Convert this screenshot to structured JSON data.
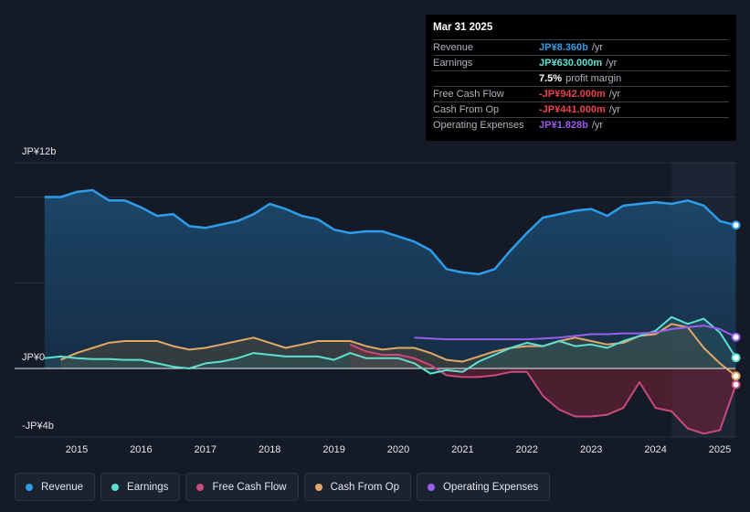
{
  "tooltip": {
    "date": "Mar 31 2025",
    "rows": [
      {
        "label": "Revenue",
        "value": "JP¥8.360b",
        "unit": "/yr",
        "color": "#2d9cea"
      },
      {
        "label": "Earnings",
        "value": "JP¥630.000m",
        "unit": "/yr",
        "color": "#5ce0d2"
      },
      {
        "label": "",
        "value": "7.5%",
        "unit": "profit margin",
        "color": "#ffffff"
      },
      {
        "label": "Free Cash Flow",
        "value": "-JP¥942.000m",
        "unit": "/yr",
        "color": "#e8434e"
      },
      {
        "label": "Cash From Op",
        "value": "-JP¥441.000m",
        "unit": "/yr",
        "color": "#e8434e"
      },
      {
        "label": "Operating Expenses",
        "value": "JP¥1.828b",
        "unit": "/yr",
        "color": "#9b5cf0"
      }
    ]
  },
  "chart_data": {
    "type": "area",
    "y_unit": "JP¥ billions",
    "ylim": [
      -4,
      12
    ],
    "y_tick_labels": {
      "top": "JP¥12b",
      "zero": "JP¥0",
      "bottom": "-JP¥4b"
    },
    "x_tick_labels": [
      "2015",
      "2016",
      "2017",
      "2018",
      "2019",
      "2020",
      "2021",
      "2022",
      "2023",
      "2024",
      "2025"
    ],
    "x_range": [
      2014.5,
      2025.25
    ],
    "highlight_start": 2024.25,
    "series": [
      {
        "name": "Revenue",
        "color": "#2d9cea",
        "x": [
          2014.5,
          2014.75,
          2015.0,
          2015.25,
          2015.5,
          2015.75,
          2016.0,
          2016.25,
          2016.5,
          2016.75,
          2017.0,
          2017.25,
          2017.5,
          2017.75,
          2018.0,
          2018.25,
          2018.5,
          2018.75,
          2019.0,
          2019.25,
          2019.5,
          2019.75,
          2020.0,
          2020.25,
          2020.5,
          2020.75,
          2021.0,
          2021.25,
          2021.5,
          2021.75,
          2022.0,
          2022.25,
          2022.5,
          2022.75,
          2023.0,
          2023.25,
          2023.5,
          2023.75,
          2024.0,
          2024.25,
          2024.5,
          2024.75,
          2025.0,
          2025.25
        ],
        "values": [
          10.0,
          10.0,
          10.3,
          10.4,
          9.8,
          9.8,
          9.4,
          8.9,
          9.0,
          8.3,
          8.2,
          8.4,
          8.6,
          9.0,
          9.6,
          9.3,
          8.9,
          8.7,
          8.1,
          7.9,
          8.0,
          8.0,
          7.7,
          7.4,
          6.9,
          5.8,
          5.6,
          5.5,
          5.8,
          6.9,
          7.9,
          8.8,
          9.0,
          9.2,
          9.3,
          8.9,
          9.5,
          9.6,
          9.7,
          9.6,
          9.8,
          9.5,
          8.6,
          8.36
        ]
      },
      {
        "name": "Earnings",
        "color": "#5ce0d2",
        "x": [
          2014.5,
          2014.75,
          2015.0,
          2015.25,
          2015.5,
          2015.75,
          2016.0,
          2016.25,
          2016.5,
          2016.75,
          2017.0,
          2017.25,
          2017.5,
          2017.75,
          2018.0,
          2018.25,
          2018.5,
          2018.75,
          2019.0,
          2019.25,
          2019.5,
          2019.75,
          2020.0,
          2020.25,
          2020.5,
          2020.75,
          2021.0,
          2021.25,
          2021.5,
          2021.75,
          2022.0,
          2022.25,
          2022.5,
          2022.75,
          2023.0,
          2023.25,
          2023.5,
          2023.75,
          2024.0,
          2024.25,
          2024.5,
          2024.75,
          2025.0,
          2025.25
        ],
        "values": [
          0.6,
          0.7,
          0.6,
          0.55,
          0.55,
          0.5,
          0.5,
          0.3,
          0.1,
          0.0,
          0.3,
          0.4,
          0.6,
          0.9,
          0.8,
          0.7,
          0.7,
          0.7,
          0.5,
          0.9,
          0.6,
          0.6,
          0.6,
          0.3,
          -0.3,
          -0.1,
          -0.2,
          0.4,
          0.8,
          1.2,
          1.5,
          1.3,
          1.6,
          1.3,
          1.4,
          1.2,
          1.6,
          1.9,
          2.2,
          3.0,
          2.6,
          2.9,
          2.1,
          0.63
        ]
      },
      {
        "name": "Free Cash Flow",
        "color": "#c94a7c",
        "x": [
          2019.25,
          2019.5,
          2019.75,
          2020.0,
          2020.25,
          2020.5,
          2020.75,
          2021.0,
          2021.25,
          2021.5,
          2021.75,
          2022.0,
          2022.25,
          2022.5,
          2022.75,
          2023.0,
          2023.25,
          2023.5,
          2023.75,
          2024.0,
          2024.25,
          2024.5,
          2024.75,
          2025.0,
          2025.25
        ],
        "values": [
          1.4,
          1.0,
          0.8,
          0.8,
          0.6,
          0.2,
          -0.4,
          -0.5,
          -0.5,
          -0.4,
          -0.2,
          -0.2,
          -1.6,
          -2.4,
          -2.8,
          -2.8,
          -2.7,
          -2.3,
          -0.8,
          -2.3,
          -2.5,
          -3.5,
          -3.8,
          -3.6,
          -0.94
        ]
      },
      {
        "name": "Cash From Op",
        "color": "#e3a866",
        "x": [
          2014.75,
          2015.0,
          2015.25,
          2015.5,
          2015.75,
          2016.0,
          2016.25,
          2016.5,
          2016.75,
          2017.0,
          2017.25,
          2017.5,
          2017.75,
          2018.0,
          2018.25,
          2018.5,
          2018.75,
          2019.0,
          2019.25,
          2019.5,
          2019.75,
          2020.0,
          2020.25,
          2020.5,
          2020.75,
          2021.0,
          2021.25,
          2021.5,
          2021.75,
          2022.0,
          2022.25,
          2022.5,
          2022.75,
          2023.0,
          2023.25,
          2023.5,
          2023.75,
          2024.0,
          2024.25,
          2024.5,
          2024.75,
          2025.0,
          2025.25
        ],
        "values": [
          0.5,
          0.9,
          1.2,
          1.5,
          1.6,
          1.6,
          1.6,
          1.3,
          1.1,
          1.2,
          1.4,
          1.6,
          1.8,
          1.5,
          1.2,
          1.4,
          1.6,
          1.6,
          1.6,
          1.3,
          1.1,
          1.2,
          1.2,
          0.9,
          0.5,
          0.4,
          0.7,
          1.0,
          1.2,
          1.3,
          1.3,
          1.6,
          1.8,
          1.6,
          1.4,
          1.5,
          1.9,
          2.0,
          2.6,
          2.4,
          1.2,
          0.3,
          -0.44
        ]
      },
      {
        "name": "Operating Expenses",
        "color": "#9b5cf0",
        "x": [
          2020.25,
          2020.5,
          2020.75,
          2021.0,
          2021.25,
          2021.5,
          2021.75,
          2022.0,
          2022.25,
          2022.5,
          2022.75,
          2023.0,
          2023.25,
          2023.5,
          2023.75,
          2024.0,
          2024.25,
          2024.5,
          2024.75,
          2025.0,
          2025.25
        ],
        "values": [
          1.8,
          1.75,
          1.7,
          1.7,
          1.7,
          1.7,
          1.7,
          1.7,
          1.75,
          1.8,
          1.9,
          2.0,
          2.0,
          2.05,
          2.05,
          2.1,
          2.3,
          2.4,
          2.5,
          2.3,
          1.828
        ]
      }
    ]
  },
  "legend": [
    {
      "label": "Revenue",
      "color": "#2d9cea"
    },
    {
      "label": "Earnings",
      "color": "#5ce0d2"
    },
    {
      "label": "Free Cash Flow",
      "color": "#c94a7c"
    },
    {
      "label": "Cash From Op",
      "color": "#e3a866"
    },
    {
      "label": "Operating Expenses",
      "color": "#9b5cf0"
    }
  ]
}
